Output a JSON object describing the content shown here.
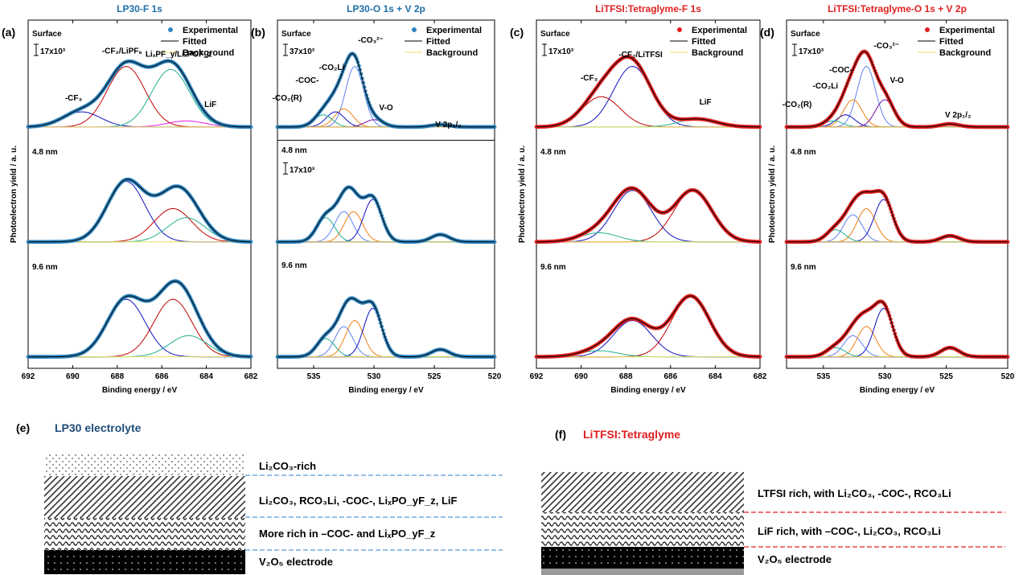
{
  "panels": [
    {
      "tag": "(a)",
      "title": "LP30-F 1s",
      "title_color": "#1f6fa8",
      "marker_color": "#2e86c1",
      "scale": "17x10³",
      "ylabel": "Photoelectron yield / a. u.",
      "xlabel": "Binding energy / eV",
      "xticks": [
        "692",
        "690",
        "688",
        "686",
        "684",
        "682"
      ],
      "depths": [
        "Surface",
        "4.8 nm",
        "9.6 nm"
      ],
      "peaks": [
        "-CF₃",
        "-CF₂/LiPF₆",
        "LiₓPF_y/LiₓPOF_z",
        "LiF"
      ]
    },
    {
      "tag": "(b)",
      "title": "LP30-O 1s + V 2p",
      "title_color": "#1f6fa8",
      "marker_color": "#2e86c1",
      "scale": "37x10³",
      "scale2": "17x10³",
      "xlabel": "Binding energy / eV",
      "xticks": [
        "535",
        "530",
        "525",
        "520"
      ],
      "depths": [
        "Surface",
        "4.8 nm",
        "9.6 nm"
      ],
      "peaks": [
        "-CO₃²⁻",
        "-CO₂Li",
        "-COC-",
        "-CO₂(R)",
        "V-O",
        "V 2p₁/₂"
      ]
    },
    {
      "tag": "(c)",
      "title": "LiTFSI:Tetraglyme-F 1s",
      "title_color": "#e02020",
      "marker_color": "#e02020",
      "scale": "17x10³",
      "ylabel": "Photoelectron yield / a. u.",
      "xlabel": "Binding energy / eV",
      "xticks": [
        "692",
        "690",
        "688",
        "686",
        "684",
        "682"
      ],
      "depths": [
        "Surface",
        "4.8 nm",
        "9.6 nm"
      ],
      "peaks": [
        "-CF₂/LiTFSI",
        "-CF₃",
        "LiF"
      ]
    },
    {
      "tag": "(d)",
      "title": "LiTFSI:Tetraglyme-O 1s + V 2p",
      "title_color": "#e02020",
      "marker_color": "#e02020",
      "scale": "17x10³",
      "ylabel": "Photoelectron yield / a. u.",
      "xlabel": "Binding energy / eV",
      "xticks": [
        "535",
        "530",
        "525",
        "520"
      ],
      "depths": [
        "Surface",
        "4.8 nm",
        "9.6 nm"
      ],
      "peaks": [
        "-CO₃²⁻",
        "-COC-",
        "-CO₂Li",
        "-CO₂(R)",
        "V-O",
        "V 2p₁/₂"
      ]
    }
  ],
  "legend": {
    "experimental": "Experimental",
    "fitted": "Fitted",
    "background": "Background"
  },
  "schematic_e": {
    "tag": "(e)",
    "title": "LP30 electrolyte",
    "title_color": "#1f4e79",
    "layers": [
      "Li₂CO₃-rich",
      "Li₂CO₃, RCO₃Li, -COC-,  LiₓPO_yF_z, LiF",
      "More rich in –COC- and LiₓPO_yF_z",
      "V₂O₅ electrode"
    ],
    "line_color": "#5b9bd5"
  },
  "schematic_f": {
    "tag": "(f)",
    "title": "LiTFSI:Tetraglyme",
    "title_color": "#e02020",
    "layers": [
      "LTFSI rich, with Li₂CO₃, -COC-, RCO₃Li",
      "LiF rich, with –COC-, Li₂CO₃, RCO₃Li",
      "V₂O₅ electrode"
    ],
    "line_color": "#e02020"
  },
  "colors": {
    "fitted": "#000000",
    "background": "#e8e060",
    "red": "#c00000",
    "blue": "#1010c0",
    "green": "#20b090",
    "magenta": "#e020e0",
    "orange": "#f08010",
    "lightblue": "#6080f0",
    "purple": "#7010a0"
  },
  "chart_data": [
    {
      "type": "line",
      "title": "LP30-F 1s",
      "xlabel": "Binding energy / eV",
      "ylabel": "Photoelectron yield / a. u.",
      "xlim": [
        692,
        682
      ],
      "series": [
        {
          "name": "Surface",
          "peaks": [
            {
              "label": "-CF₃",
              "center": 689.6,
              "height": 0.25
            },
            {
              "label": "-CF₂/LiPF₆",
              "center": 687.6,
              "height": 1.0
            },
            {
              "label": "LiₓPF_y/LiₓPOF_z",
              "center": 685.6,
              "height": 0.95
            },
            {
              "label": "LiF",
              "center": 684.9,
              "height": 0.1
            }
          ]
        },
        {
          "name": "4.8 nm",
          "peaks": [
            {
              "center": 687.6,
              "height": 1.0
            },
            {
              "center": 685.5,
              "height": 0.55
            },
            {
              "center": 684.9,
              "height": 0.4
            }
          ]
        },
        {
          "name": "9.6 nm",
          "peaks": [
            {
              "center": 687.6,
              "height": 0.95
            },
            {
              "center": 685.5,
              "height": 0.95
            },
            {
              "center": 684.8,
              "height": 0.35
            }
          ]
        }
      ]
    },
    {
      "type": "line",
      "title": "LP30-O 1s + V 2p",
      "xlabel": "Binding energy / eV",
      "xlim": [
        538,
        520
      ],
      "series": [
        {
          "name": "Surface",
          "peaks": [
            {
              "label": "-CO₃²⁻",
              "center": 531.6,
              "height": 1.0
            },
            {
              "label": "-CO₂Li",
              "center": 532.5,
              "height": 0.3
            },
            {
              "label": "-COC-",
              "center": 533.2,
              "height": 0.25
            },
            {
              "label": "-CO₂(R)",
              "center": 534.2,
              "height": 0.2
            },
            {
              "label": "V-O",
              "center": 530.0,
              "height": 0.12
            },
            {
              "label": "V 2p₁/₂",
              "center": 524.5,
              "height": 0.04
            }
          ]
        },
        {
          "name": "4.8 nm",
          "peaks": [
            {
              "center": 532.5,
              "height": 0.5
            },
            {
              "center": 531.7,
              "height": 0.5
            },
            {
              "center": 530.1,
              "height": 0.7
            },
            {
              "center": 534.0,
              "height": 0.4
            },
            {
              "center": 524.5,
              "height": 0.12
            }
          ]
        },
        {
          "name": "9.6 nm",
          "peaks": [
            {
              "center": 532.5,
              "height": 0.5
            },
            {
              "center": 531.6,
              "height": 0.6
            },
            {
              "center": 530.1,
              "height": 0.8
            },
            {
              "center": 534.0,
              "height": 0.3
            },
            {
              "center": 524.5,
              "height": 0.12
            }
          ]
        }
      ]
    },
    {
      "type": "line",
      "title": "LiTFSI:Tetraglyme-F 1s",
      "xlabel": "Binding energy / eV",
      "ylabel": "Photoelectron yield / a. u.",
      "xlim": [
        692,
        682
      ],
      "series": [
        {
          "name": "Surface",
          "peaks": [
            {
              "label": "-CF₂/LiTFSI",
              "center": 687.7,
              "height": 1.0
            },
            {
              "label": "-CF₃",
              "center": 689.1,
              "height": 0.5
            },
            {
              "label": "LiF",
              "center": 684.8,
              "height": 0.13
            }
          ]
        },
        {
          "name": "4.8 nm",
          "peaks": [
            {
              "center": 687.7,
              "height": 0.85
            },
            {
              "center": 685.0,
              "height": 0.85
            },
            {
              "center": 689.2,
              "height": 0.15
            }
          ]
        },
        {
          "name": "9.6 nm",
          "peaks": [
            {
              "center": 687.7,
              "height": 0.6
            },
            {
              "center": 685.1,
              "height": 1.0
            },
            {
              "center": 689.2,
              "height": 0.1
            }
          ]
        }
      ]
    },
    {
      "type": "line",
      "title": "LiTFSI:Tetraglyme-O 1s + V 2p",
      "xlabel": "Binding energy / eV",
      "ylabel": "Photoelectron yield / a. u.",
      "xlim": [
        538,
        520
      ],
      "series": [
        {
          "name": "Surface",
          "peaks": [
            {
              "label": "-CO₃²⁻",
              "center": 531.5,
              "height": 1.0
            },
            {
              "label": "-COC-",
              "center": 532.6,
              "height": 0.45
            },
            {
              "label": "-CO₂Li",
              "center": 533.2,
              "height": 0.2
            },
            {
              "label": "-CO₂(R)",
              "center": 534.2,
              "height": 0.1
            },
            {
              "label": "V-O",
              "center": 530.0,
              "height": 0.45
            },
            {
              "label": "V 2p₁/₂",
              "center": 524.7,
              "height": 0.05
            }
          ]
        },
        {
          "name": "4.8 nm",
          "peaks": [
            {
              "center": 532.6,
              "height": 0.45
            },
            {
              "center": 531.5,
              "height": 0.55
            },
            {
              "center": 530.1,
              "height": 0.7
            },
            {
              "center": 534.0,
              "height": 0.2
            },
            {
              "center": 524.7,
              "height": 0.1
            }
          ]
        },
        {
          "name": "9.6 nm",
          "peaks": [
            {
              "center": 532.6,
              "height": 0.35
            },
            {
              "center": 531.5,
              "height": 0.5
            },
            {
              "center": 530.1,
              "height": 0.8
            },
            {
              "center": 534.0,
              "height": 0.15
            },
            {
              "center": 524.7,
              "height": 0.15
            }
          ]
        }
      ]
    }
  ]
}
